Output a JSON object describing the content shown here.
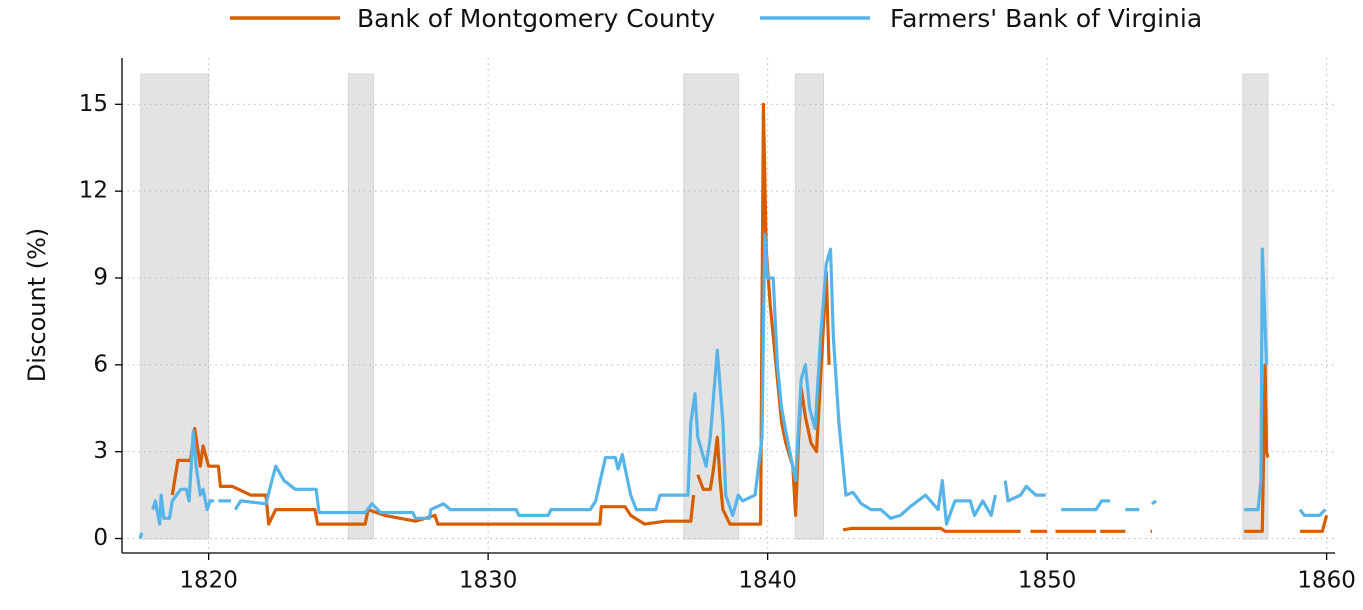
{
  "chart_data": {
    "type": "line",
    "y_label": "Discount (%)",
    "legend": "top",
    "grid": true,
    "xlim": [
      1816.9,
      1860.3
    ],
    "ylim": [
      -0.5,
      16.6
    ],
    "xticks": [
      1820,
      1830,
      1840,
      1850,
      1860
    ],
    "yticks": [
      0,
      3,
      6,
      9,
      12,
      15
    ],
    "shaded_periods": [
      [
        1817.57,
        1820.0
      ],
      [
        1825.0,
        1825.9
      ],
      [
        1837.0,
        1838.96
      ],
      [
        1841.0,
        1842.0
      ],
      [
        1857.0,
        1857.9
      ]
    ],
    "shade_color": "#e3e3e3",
    "series": [
      {
        "name": "Bank of Montgomery County",
        "color": "#d55e00",
        "x": [
          1818.7,
          1818.9,
          1819.35,
          1819.5,
          1819.7,
          1819.8,
          1820.0,
          1820.35,
          1820.42,
          1820.85,
          1821.5,
          1822.05,
          1822.15,
          1822.4,
          1823.8,
          1823.9,
          1825.6,
          1825.7,
          1826.3,
          1827.4,
          1828.1,
          1828.2,
          1834.0,
          1834.05,
          1834.9,
          1835.1,
          1835.6,
          1836.35,
          1837.25,
          1837.35,
          1837.42,
          1837.5,
          1837.7,
          1837.95,
          1838.05,
          1838.2,
          1838.3,
          1838.4,
          1838.65,
          1839.75,
          1839.85,
          1839.95,
          1840.1,
          1840.3,
          1840.5,
          1840.65,
          1840.9,
          1841.0,
          1841.1,
          1841.2,
          1841.35,
          1841.55,
          1841.75,
          1841.95,
          1842.1,
          1842.2,
          1842.45,
          1842.7,
          1843.0,
          1846.2,
          1846.35,
          1849.05,
          1849.2,
          1849.4,
          1850.0,
          1850.15,
          1850.3,
          1851.75,
          1851.82,
          1851.9,
          1852.8,
          1853.2,
          1853.7,
          1853.75,
          1855.0,
          1857.05,
          1857.7,
          1857.8,
          1857.85,
          1857.9,
          1858.5,
          1859.05,
          1859.85,
          1860.0
        ],
        "values": [
          1.5,
          2.7,
          2.7,
          3.8,
          2.5,
          3.2,
          2.5,
          2.5,
          1.8,
          1.8,
          1.5,
          1.5,
          0.5,
          1.0,
          1.0,
          0.5,
          0.5,
          1.0,
          0.8,
          0.6,
          0.8,
          0.5,
          0.5,
          1.1,
          1.1,
          0.8,
          0.5,
          0.6,
          0.6,
          1.5,
          null,
          2.2,
          1.7,
          1.7,
          2.3,
          3.5,
          2.0,
          1.0,
          0.5,
          0.5,
          15,
          10,
          8,
          6,
          4,
          3.3,
          2.5,
          0.8,
          3.3,
          5.2,
          4.2,
          3.3,
          3.0,
          6.5,
          9.2,
          6.0,
          null,
          0.3,
          0.35,
          0.35,
          0.25,
          0.25,
          null,
          0.25,
          0.25,
          null,
          0.25,
          0.25,
          null,
          0.25,
          0.25,
          null,
          0.25,
          0.25,
          null,
          0.25,
          0.25,
          6,
          3,
          2.8,
          null,
          0.25,
          0.25,
          0.8
        ]
      },
      {
        "name": "Farmers' Bank of Virginia",
        "color": "#56b4e9",
        "x": [
          1817.55,
          1817.6,
          1817.8,
          1818.0,
          1818.1,
          1818.15,
          1818.25,
          1818.3,
          1818.4,
          1818.6,
          1818.7,
          1819.0,
          1819.2,
          1819.3,
          1819.45,
          1819.55,
          1819.7,
          1819.8,
          1819.95,
          1820.05,
          1820.2,
          1820.27,
          1820.35,
          1820.8,
          1820.87,
          1820.95,
          1821.15,
          1822.05,
          1822.4,
          1822.7,
          1823.1,
          1823.85,
          1823.95,
          1825.6,
          1825.85,
          1826.15,
          1827.3,
          1827.4,
          1827.9,
          1827.95,
          1828.4,
          1828.65,
          1831.0,
          1831.1,
          1832.15,
          1832.25,
          1833.65,
          1833.85,
          1834.2,
          1834.55,
          1834.65,
          1834.8,
          1835.1,
          1835.3,
          1836.0,
          1836.15,
          1837.15,
          1837.25,
          1837.4,
          1837.5,
          1837.8,
          1837.95,
          1838.2,
          1838.4,
          1838.5,
          1838.75,
          1838.95,
          1839.1,
          1839.55,
          1839.8,
          1839.9,
          1840.0,
          1840.2,
          1840.35,
          1840.5,
          1840.65,
          1841.0,
          1841.2,
          1841.35,
          1841.5,
          1841.7,
          1841.9,
          1842.1,
          1842.25,
          1842.35,
          1842.55,
          1842.8,
          1843.05,
          1843.35,
          1843.7,
          1844.05,
          1844.4,
          1844.75,
          1845.1,
          1845.65,
          1846.1,
          1846.25,
          1846.4,
          1846.7,
          1847.25,
          1847.4,
          1847.7,
          1848.0,
          1848.15,
          1848.3,
          1848.5,
          1848.6,
          1849.05,
          1849.25,
          1849.6,
          1849.95,
          1850.2,
          1850.5,
          1851.75,
          1851.95,
          1852.25,
          1852.5,
          1852.8,
          1853.3,
          1853.5,
          1853.75,
          1853.9,
          1855.0,
          1857.05,
          1857.55,
          1857.65,
          1857.7,
          1857.85,
          1858.5,
          1859.05,
          1859.2,
          1859.75,
          1859.95
        ],
        "values": [
          0,
          0.2,
          null,
          1.0,
          1.3,
          1.0,
          0.5,
          1.5,
          0.7,
          0.7,
          1.3,
          1.7,
          1.7,
          1.3,
          3.7,
          2.5,
          1.5,
          1.7,
          1.0,
          1.3,
          1.3,
          null,
          1.3,
          1.3,
          null,
          1.0,
          1.3,
          1.2,
          2.5,
          2.0,
          1.7,
          1.7,
          0.9,
          0.9,
          1.2,
          0.9,
          0.9,
          0.7,
          0.7,
          1.0,
          1.2,
          1.0,
          1.0,
          0.8,
          0.8,
          1.0,
          1.0,
          1.3,
          2.8,
          2.8,
          2.4,
          2.9,
          1.5,
          1.0,
          1.0,
          1.5,
          1.5,
          4.0,
          5.0,
          3.5,
          2.5,
          3.5,
          6.5,
          4.0,
          1.5,
          0.8,
          1.5,
          1.3,
          1.5,
          3.5,
          10.5,
          9,
          9,
          6,
          4.5,
          3.7,
          2.0,
          5.5,
          6.0,
          4.5,
          3.8,
          7.0,
          9.5,
          10,
          7,
          4,
          1.5,
          1.6,
          1.2,
          1.0,
          1.0,
          0.7,
          0.8,
          1.1,
          1.5,
          1.0,
          2.0,
          0.5,
          1.3,
          1.3,
          0.8,
          1.3,
          0.8,
          1.5,
          null,
          2.0,
          1.3,
          1.5,
          1.8,
          1.5,
          1.5,
          null,
          1.0,
          1.0,
          1.3,
          1.3,
          null,
          1.0,
          1.0,
          null,
          1.2,
          1.3,
          null,
          1.0,
          1.0,
          2.0,
          10,
          6,
          null,
          1.0,
          0.8,
          0.8,
          1.0
        ]
      }
    ]
  }
}
